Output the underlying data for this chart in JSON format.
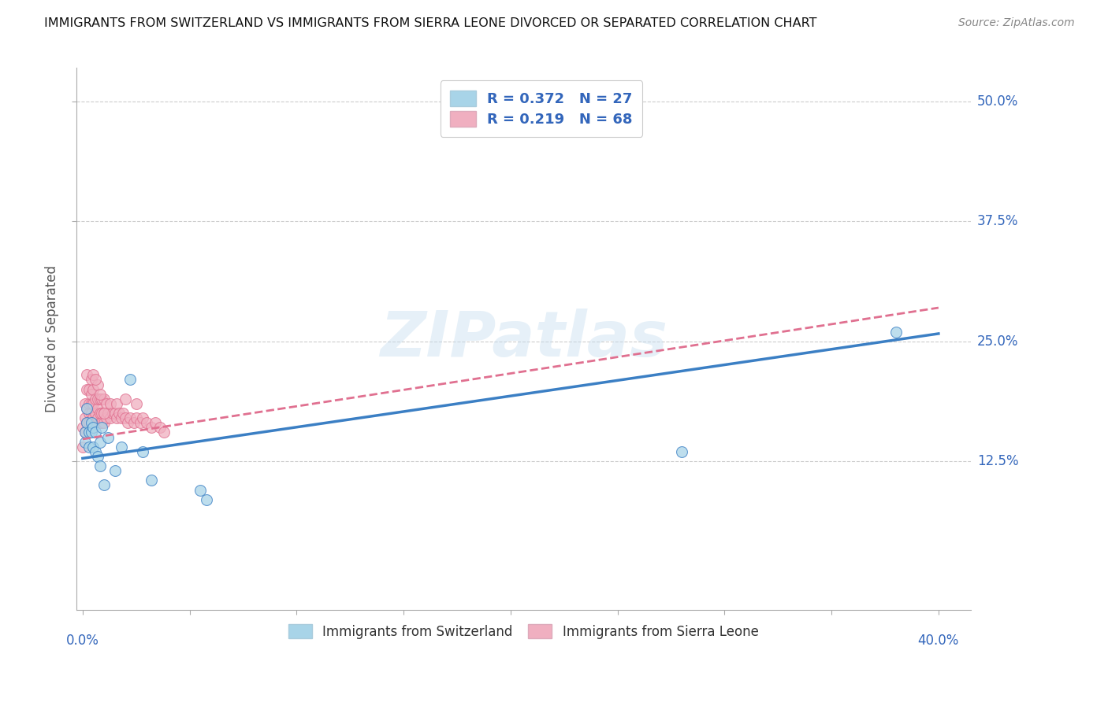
{
  "title": "IMMIGRANTS FROM SWITZERLAND VS IMMIGRANTS FROM SIERRA LEONE DIVORCED OR SEPARATED CORRELATION CHART",
  "source": "Source: ZipAtlas.com",
  "ylabel": "Divorced or Separated",
  "y_ticks": [
    "12.5%",
    "25.0%",
    "37.5%",
    "50.0%"
  ],
  "y_tick_vals": [
    0.125,
    0.25,
    0.375,
    0.5
  ],
  "xlim": [
    -0.003,
    0.415
  ],
  "ylim": [
    -0.03,
    0.535
  ],
  "switzerland_R": 0.372,
  "switzerland_N": 27,
  "sierraleone_R": 0.219,
  "sierraleone_N": 68,
  "color_blue": "#a8d4e8",
  "color_pink": "#f0afc0",
  "color_blue_line": "#3b7fc4",
  "color_pink_line": "#e07090",
  "legend_text_color": "#3366bb",
  "sw_line_start_y": 0.128,
  "sw_line_end_y": 0.258,
  "sl_line_start_y": 0.148,
  "sl_line_end_y": 0.285,
  "switzerland_x": [
    0.001,
    0.001,
    0.002,
    0.002,
    0.003,
    0.003,
    0.004,
    0.004,
    0.005,
    0.005,
    0.006,
    0.006,
    0.007,
    0.008,
    0.008,
    0.009,
    0.01,
    0.012,
    0.015,
    0.018,
    0.022,
    0.028,
    0.032,
    0.055,
    0.058,
    0.28,
    0.38
  ],
  "switzerland_y": [
    0.145,
    0.155,
    0.165,
    0.18,
    0.14,
    0.155,
    0.155,
    0.165,
    0.14,
    0.16,
    0.135,
    0.155,
    0.13,
    0.12,
    0.145,
    0.16,
    0.1,
    0.15,
    0.115,
    0.14,
    0.21,
    0.135,
    0.105,
    0.095,
    0.085,
    0.135,
    0.26
  ],
  "sierraleone_x": [
    0.0,
    0.0,
    0.001,
    0.001,
    0.001,
    0.002,
    0.002,
    0.002,
    0.002,
    0.003,
    0.003,
    0.003,
    0.003,
    0.004,
    0.004,
    0.004,
    0.004,
    0.004,
    0.005,
    0.005,
    0.005,
    0.005,
    0.005,
    0.006,
    0.006,
    0.006,
    0.007,
    0.007,
    0.007,
    0.007,
    0.008,
    0.008,
    0.008,
    0.009,
    0.009,
    0.009,
    0.01,
    0.01,
    0.01,
    0.011,
    0.011,
    0.012,
    0.013,
    0.013,
    0.014,
    0.015,
    0.016,
    0.016,
    0.017,
    0.018,
    0.019,
    0.02,
    0.021,
    0.022,
    0.024,
    0.025,
    0.027,
    0.028,
    0.03,
    0.032,
    0.034,
    0.036,
    0.038,
    0.02,
    0.025,
    0.01,
    0.008,
    0.006
  ],
  "sierraleone_y": [
    0.14,
    0.16,
    0.155,
    0.17,
    0.185,
    0.165,
    0.18,
    0.2,
    0.215,
    0.165,
    0.175,
    0.185,
    0.2,
    0.165,
    0.175,
    0.185,
    0.195,
    0.21,
    0.16,
    0.17,
    0.185,
    0.2,
    0.215,
    0.165,
    0.175,
    0.19,
    0.17,
    0.18,
    0.19,
    0.205,
    0.165,
    0.175,
    0.19,
    0.165,
    0.175,
    0.19,
    0.165,
    0.175,
    0.19,
    0.17,
    0.185,
    0.175,
    0.17,
    0.185,
    0.175,
    0.175,
    0.17,
    0.185,
    0.175,
    0.17,
    0.175,
    0.17,
    0.165,
    0.17,
    0.165,
    0.17,
    0.165,
    0.17,
    0.165,
    0.16,
    0.165,
    0.16,
    0.155,
    0.19,
    0.185,
    0.175,
    0.195,
    0.21
  ]
}
